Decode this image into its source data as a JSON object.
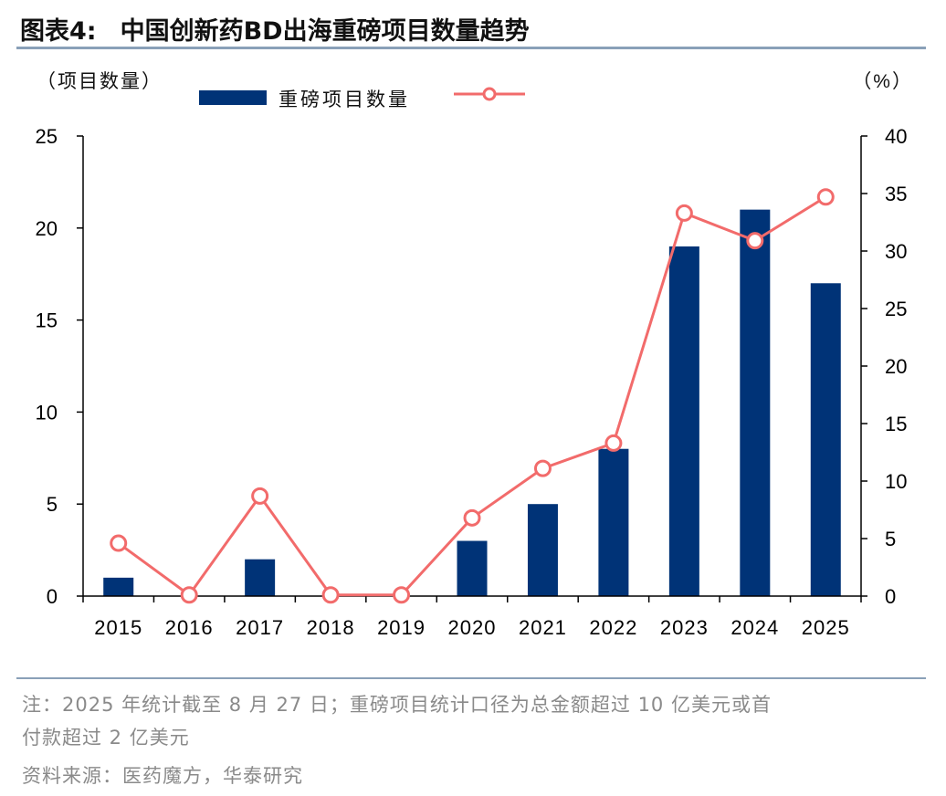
{
  "header": {
    "figure_label": "图表4:",
    "title": "中国创新药BD出海重磅项目数量趋势"
  },
  "chart_data": {
    "type": "bar+line",
    "categories": [
      "2015",
      "2016",
      "2017",
      "2018",
      "2019",
      "2020",
      "2021",
      "2022",
      "2023",
      "2024",
      "2025"
    ],
    "series": [
      {
        "name": "重磅项目数量",
        "kind": "bar",
        "axis": "left",
        "color": "#003377",
        "values": [
          1,
          0,
          2,
          0,
          0,
          3,
          5,
          8,
          19,
          21,
          17
        ]
      },
      {
        "name": "",
        "kind": "line",
        "axis": "right",
        "color": "#f26b6b",
        "values": [
          4.6,
          0.1,
          8.7,
          0.1,
          0.1,
          6.8,
          11.1,
          13.3,
          33.3,
          30.9,
          34.7
        ]
      }
    ],
    "left_axis": {
      "label": "（项目数量）",
      "ylim": [
        0,
        25
      ],
      "ticks": [
        0,
        5,
        10,
        15,
        20,
        25
      ]
    },
    "right_axis": {
      "label": "（%）",
      "ylim": [
        0,
        40
      ],
      "ticks": [
        0,
        5,
        10,
        15,
        20,
        25,
        30,
        35,
        40
      ]
    },
    "legend_position": "top",
    "grid": false
  },
  "notes": {
    "note_line1": "注：2025 年统计截至 8 月 27 日；重磅项目统计口径为总金额超过 10 亿美元或首",
    "note_line2": "付款超过 2 亿美元",
    "source": "资料来源：医药魔方，华泰研究"
  }
}
